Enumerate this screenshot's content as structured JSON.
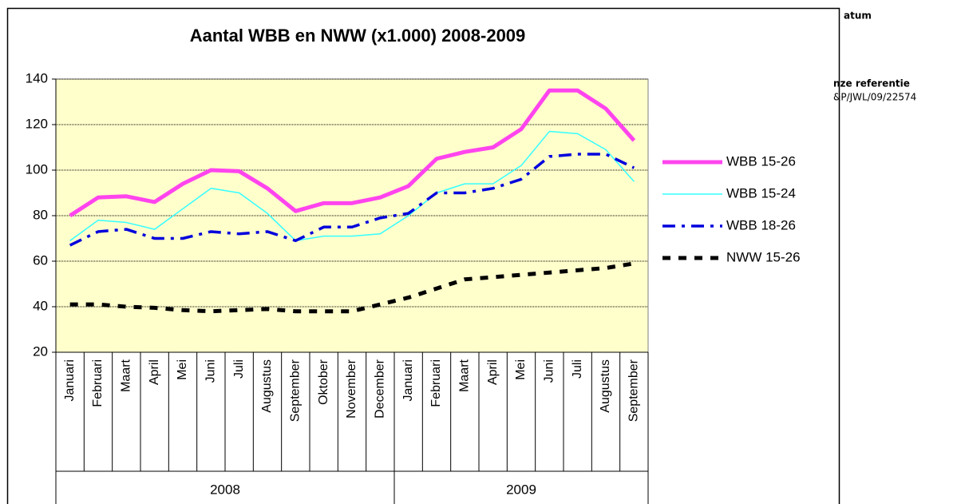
{
  "document": {
    "date_label": "atum",
    "reference_label": "nze referentie",
    "reference": "&P/JWL/09/22574"
  },
  "chart_data": {
    "type": "line",
    "title": "Aantal WBB en NWW (x1.000) 2008-2009",
    "categories": [
      "Januari",
      "Februari",
      "Maart",
      "April",
      "Mei",
      "Juni",
      "Juli",
      "Augustus",
      "September",
      "Oktober",
      "November",
      "December",
      "Januari",
      "Februari",
      "Maart",
      "April",
      "Mei",
      "Juni",
      "Juli",
      "Augustus",
      "September"
    ],
    "groups": [
      "2008",
      "2009"
    ],
    "series": [
      {
        "name": "WBB 15-26",
        "color": "#ff44ee",
        "width": 5,
        "dash": "solid",
        "values": [
          80,
          88,
          88.5,
          86,
          94,
          100,
          99.5,
          92,
          82,
          85.5,
          85.5,
          88,
          93,
          105,
          108,
          110,
          118,
          135,
          135,
          127,
          113
        ]
      },
      {
        "name": "WBB 15-24",
        "color": "#33ffff",
        "width": 1.5,
        "dash": "solid",
        "values": [
          69,
          78,
          77,
          74,
          83,
          92,
          90,
          81,
          69,
          71,
          71,
          72,
          80,
          90,
          94,
          94,
          102,
          117,
          116,
          109,
          95
        ]
      },
      {
        "name": "WBB 18-26",
        "color": "#0000dd",
        "width": 3.5,
        "dash": "dashdot",
        "values": [
          67,
          73,
          74,
          70,
          70,
          73,
          72,
          73,
          69,
          75,
          75,
          79,
          81,
          90,
          90,
          92,
          96,
          106,
          107,
          107,
          101
        ]
      },
      {
        "name": "NWW 15-26",
        "color": "#000000",
        "width": 5,
        "dash": "dashed",
        "values": [
          41,
          41,
          40,
          39.5,
          38.5,
          38,
          38.5,
          39,
          38,
          38,
          38,
          41,
          44,
          48,
          52,
          53,
          54,
          55,
          56,
          57,
          59
        ]
      }
    ],
    "ylim": [
      20,
      140
    ],
    "yticks": [
      20,
      40,
      60,
      80,
      100,
      120,
      140
    ],
    "grid": true,
    "legend": "right"
  }
}
